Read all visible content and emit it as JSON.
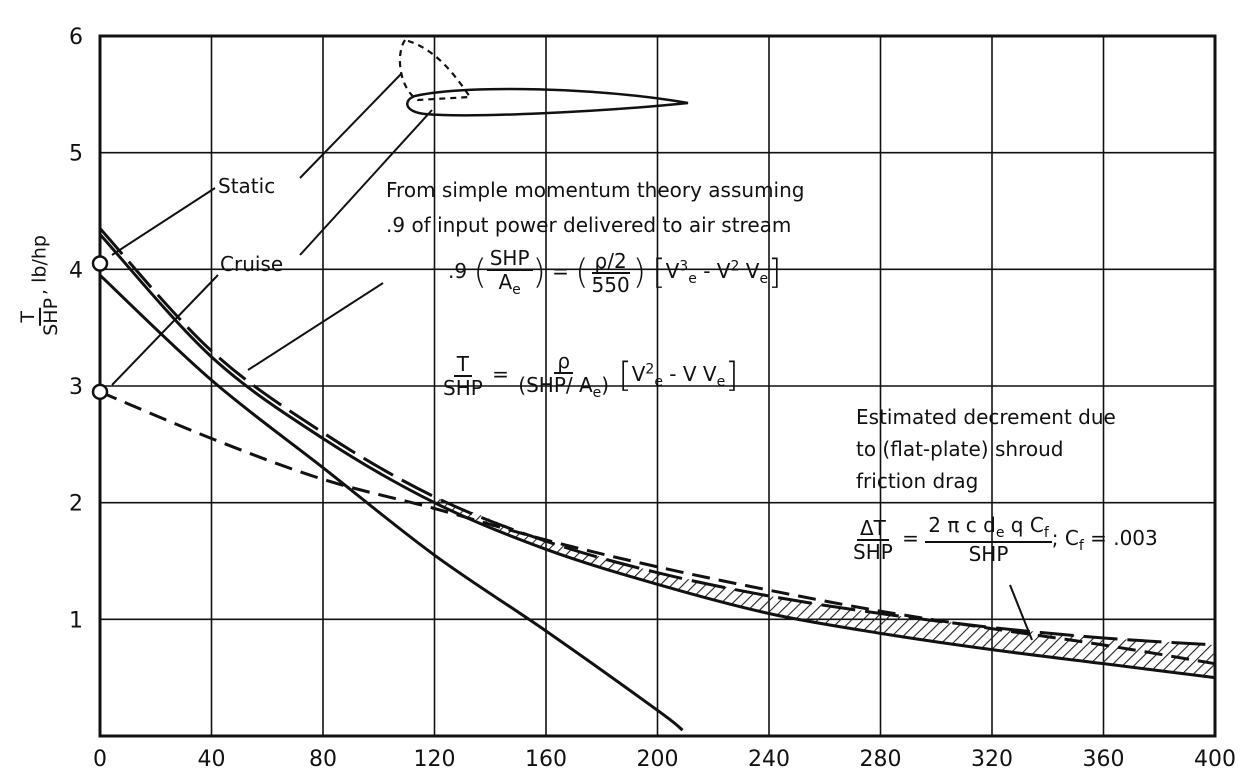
{
  "chart_data": {
    "type": "line",
    "xlabel": "",
    "ylabel": "T / SHP, lb/hp",
    "ylabel_num": "T",
    "ylabel_den": "SHP",
    "ylabel_units": ", lb/hp",
    "xlim": [
      0,
      400
    ],
    "ylim": [
      0,
      6
    ],
    "xticks": [
      0,
      40,
      80,
      120,
      160,
      200,
      240,
      280,
      320,
      360,
      400
    ],
    "yticks": [
      1,
      2,
      3,
      4,
      5,
      6
    ],
    "grid": true,
    "series": [
      {
        "style": "solid",
        "x": [
          0,
          40,
          80,
          120,
          160,
          200,
          209
        ],
        "y": [
          3.95,
          3.05,
          2.3,
          1.55,
          0.9,
          0.22,
          0.05
        ]
      },
      {
        "style": "solid",
        "x": [
          0,
          40,
          80,
          120,
          160,
          200,
          240,
          280,
          320,
          360,
          400
        ],
        "y": [
          4.3,
          3.25,
          2.55,
          2.0,
          1.6,
          1.3,
          1.05,
          0.88,
          0.74,
          0.62,
          0.5
        ]
      },
      {
        "style": "dashed",
        "x": [
          0,
          40,
          80,
          120,
          160,
          200,
          240,
          280,
          320,
          360,
          400
        ],
        "y": [
          2.95,
          2.55,
          2.2,
          1.95,
          1.68,
          1.45,
          1.25,
          1.07,
          0.92,
          0.78,
          0.62
        ]
      },
      {
        "style": "long-dash",
        "x": [
          0,
          40,
          80,
          120,
          160,
          200,
          240,
          280,
          320,
          360,
          400
        ],
        "y": [
          4.35,
          3.3,
          2.6,
          2.05,
          1.67,
          1.4,
          1.2,
          1.05,
          0.93,
          0.84,
          0.78
        ]
      }
    ],
    "markers": [
      {
        "x": 0,
        "y": 4.05,
        "label": "Static"
      },
      {
        "x": 0,
        "y": 2.95,
        "label": "Cruise"
      }
    ]
  },
  "annotations": {
    "static": "Static",
    "cruise": "Cruise",
    "momentum_line1": "From simple momentum theory assuming",
    "momentum_line2": ".9 of input power delivered to air stream",
    "eq1_coef": ".9",
    "eq1_num1": "SHP",
    "eq1_den1": "A",
    "eq1_den1_sub": "e",
    "eq1_eq": "=",
    "eq1_num2": "ρ/2",
    "eq1_den2": "550",
    "eq1_v": "V",
    "eq1_v_sub": "e",
    "eq1_v_sup": "3",
    "eq1_minus": " - V",
    "eq1_v2_sup": "2",
    "eq1_ve": " V",
    "eq1_ve_sub": "e",
    "eq2_num1": "T",
    "eq2_den1": "SHP",
    "eq2_num2": "ρ",
    "eq2_den2": "(SHP/ A",
    "eq2_den2_sub": "e",
    "eq2_den2_close": ")",
    "eq2_v": "V",
    "eq2_v_sub": "e",
    "eq2_v_sup": "2",
    "eq2_rest": " - V V",
    "eq2_rest_sub": "e",
    "decrement_line1": "Estimated  decrement due",
    "decrement_line2": "to (flat-plate)  shroud",
    "decrement_line3": "friction drag",
    "eq3_num1": "ΔT",
    "eq3_den1": "SHP",
    "eq3_num2": "2 π c d",
    "eq3_num2_sub": "e",
    "eq3_num2_rest": " q C",
    "eq3_num2_sub2": "f",
    "eq3_den2": "SHP",
    "eq3_cf": "; C",
    "eq3_cf_sub": "f",
    "eq3_cf_val": " = .003"
  },
  "colors": {
    "ink": "#111111",
    "hatch": "#222222",
    "background": "#ffffff"
  }
}
